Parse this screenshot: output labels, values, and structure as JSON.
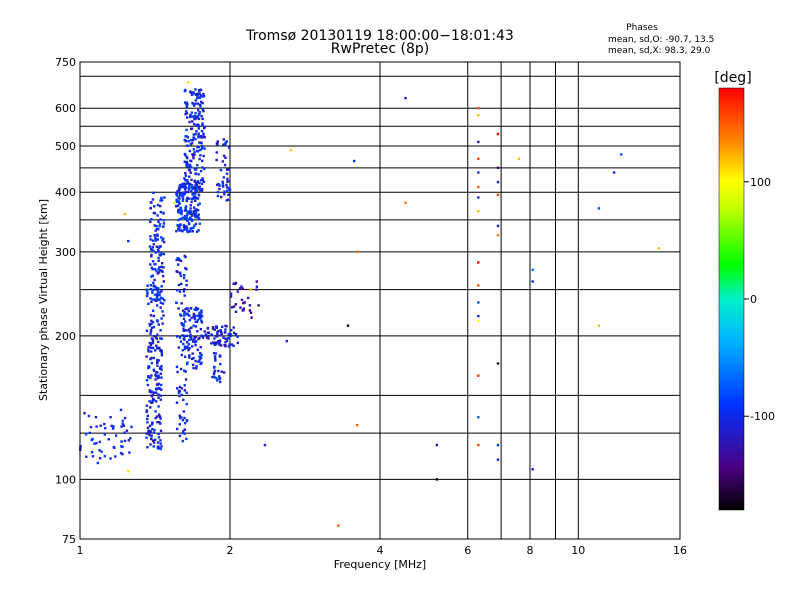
{
  "chart_data": {
    "type": "scatter",
    "title": "Tromsø 20130119 18:00:00−18:01:43",
    "subtitle": "RwPretec (8p)",
    "xlabel": "Frequency [MHz]",
    "ylabel": "Stationary phase Virtual Height [km]",
    "x_scale": "log",
    "y_scale": "log",
    "xlim": [
      1,
      16
    ],
    "ylim": [
      75,
      750
    ],
    "x_ticks": [
      1,
      2,
      4,
      6,
      8,
      10,
      16
    ],
    "y_ticks": [
      75,
      100,
      200,
      300,
      400,
      500,
      600,
      750
    ],
    "x_gridlines": [
      2,
      4,
      6,
      7,
      8,
      9,
      10
    ],
    "y_gridlines": [
      100,
      125,
      150,
      200,
      250,
      300,
      350,
      400,
      450,
      500,
      550,
      600,
      700
    ],
    "grid": true,
    "stats": {
      "header": "Phases",
      "line1": "mean, sd,O: -90.7, 13.5",
      "line2": "mean, sd,X:  98.3, 29.0"
    },
    "colorbar": {
      "label": "[deg]",
      "ticks": [
        100,
        0,
        -100
      ],
      "range": [
        -180,
        180
      ]
    },
    "clusters": [
      {
        "f": [
          1.0,
          1.27
        ],
        "h": [
          108,
          140
        ],
        "phase": -100,
        "n": 55
      },
      {
        "f": [
          1.36,
          1.46
        ],
        "h": [
          115,
          210
        ],
        "phase": -105,
        "n": 160
      },
      {
        "f": [
          1.38,
          1.48
        ],
        "h": [
          210,
          400
        ],
        "phase": -100,
        "n": 130
      },
      {
        "f": [
          1.56,
          1.74
        ],
        "h": [
          330,
          420
        ],
        "phase": -95,
        "n": 180
      },
      {
        "f": [
          1.62,
          1.78
        ],
        "h": [
          400,
          660
        ],
        "phase": -100,
        "n": 200
      },
      {
        "f": [
          1.56,
          1.64
        ],
        "h": [
          120,
          300
        ],
        "phase": -105,
        "n": 90
      },
      {
        "f": [
          1.6,
          1.76
        ],
        "h": [
          170,
          230
        ],
        "phase": -100,
        "n": 110
      },
      {
        "f": [
          1.76,
          2.08
        ],
        "h": [
          190,
          210
        ],
        "phase": -110,
        "n": 70
      },
      {
        "f": [
          1.88,
          2.0
        ],
        "h": [
          380,
          520
        ],
        "phase": -105,
        "n": 45
      },
      {
        "f": [
          1.84,
          1.96
        ],
        "h": [
          160,
          185
        ],
        "phase": -100,
        "n": 25
      },
      {
        "f": [
          2.0,
          2.3
        ],
        "h": [
          215,
          260
        ],
        "phase": -130,
        "n": 30
      },
      {
        "f": [
          1.36,
          1.44
        ],
        "h": [
          230,
          260
        ],
        "phase": -90,
        "n": 20
      }
    ],
    "points": [
      {
        "f": 1.23,
        "h": 360,
        "phase": 120
      },
      {
        "f": 1.25,
        "h": 104,
        "phase": 110
      },
      {
        "f": 1.25,
        "h": 316,
        "phase": -100
      },
      {
        "f": 1.55,
        "h": 380,
        "phase": 90
      },
      {
        "f": 1.65,
        "h": 680,
        "phase": 110
      },
      {
        "f": 2.2,
        "h": 250,
        "phase": 120
      },
      {
        "f": 2.35,
        "h": 118,
        "phase": -110
      },
      {
        "f": 2.6,
        "h": 195,
        "phase": -110
      },
      {
        "f": 2.65,
        "h": 490,
        "phase": 115
      },
      {
        "f": 3.3,
        "h": 80,
        "phase": 150
      },
      {
        "f": 3.45,
        "h": 210,
        "phase": -170
      },
      {
        "f": 3.6,
        "h": 300,
        "phase": 140
      },
      {
        "f": 3.6,
        "h": 130,
        "phase": 150
      },
      {
        "f": 3.55,
        "h": 465,
        "phase": -90
      },
      {
        "f": 4.5,
        "h": 380,
        "phase": 140
      },
      {
        "f": 4.5,
        "h": 630,
        "phase": -110
      },
      {
        "f": 5.2,
        "h": 118,
        "phase": -130
      },
      {
        "f": 5.2,
        "h": 100,
        "phase": -180
      },
      {
        "f": 6.3,
        "h": 600,
        "phase": 150
      },
      {
        "f": 6.3,
        "h": 580,
        "phase": 120
      },
      {
        "f": 6.3,
        "h": 510,
        "phase": -120
      },
      {
        "f": 6.3,
        "h": 470,
        "phase": 160
      },
      {
        "f": 6.3,
        "h": 440,
        "phase": -100
      },
      {
        "f": 6.3,
        "h": 410,
        "phase": 150
      },
      {
        "f": 6.3,
        "h": 390,
        "phase": -100
      },
      {
        "f": 6.3,
        "h": 365,
        "phase": 120
      },
      {
        "f": 6.3,
        "h": 285,
        "phase": 180
      },
      {
        "f": 6.3,
        "h": 255,
        "phase": 150
      },
      {
        "f": 6.3,
        "h": 235,
        "phase": -80
      },
      {
        "f": 6.3,
        "h": 215,
        "phase": 100
      },
      {
        "f": 6.3,
        "h": 220,
        "phase": -100
      },
      {
        "f": 6.3,
        "h": 135,
        "phase": -70
      },
      {
        "f": 6.3,
        "h": 118,
        "phase": 160
      },
      {
        "f": 6.3,
        "h": 165,
        "phase": 160
      },
      {
        "f": 6.9,
        "h": 530,
        "phase": 180
      },
      {
        "f": 6.9,
        "h": 450,
        "phase": -150
      },
      {
        "f": 6.9,
        "h": 420,
        "phase": -100
      },
      {
        "f": 6.9,
        "h": 395,
        "phase": 160
      },
      {
        "f": 6.9,
        "h": 340,
        "phase": -110
      },
      {
        "f": 6.9,
        "h": 325,
        "phase": 140
      },
      {
        "f": 6.9,
        "h": 175,
        "phase": -160
      },
      {
        "f": 6.9,
        "h": 118,
        "phase": -90
      },
      {
        "f": 6.9,
        "h": 110,
        "phase": -110
      },
      {
        "f": 7.6,
        "h": 470,
        "phase": 120
      },
      {
        "f": 8.1,
        "h": 275,
        "phase": -60
      },
      {
        "f": 8.1,
        "h": 260,
        "phase": -100
      },
      {
        "f": 8.1,
        "h": 105,
        "phase": -110
      },
      {
        "f": 11.0,
        "h": 370,
        "phase": -80
      },
      {
        "f": 11.0,
        "h": 210,
        "phase": 120
      },
      {
        "f": 11.8,
        "h": 440,
        "phase": -100
      },
      {
        "f": 12.2,
        "h": 480,
        "phase": -80
      },
      {
        "f": 14.5,
        "h": 305,
        "phase": 120
      }
    ]
  }
}
